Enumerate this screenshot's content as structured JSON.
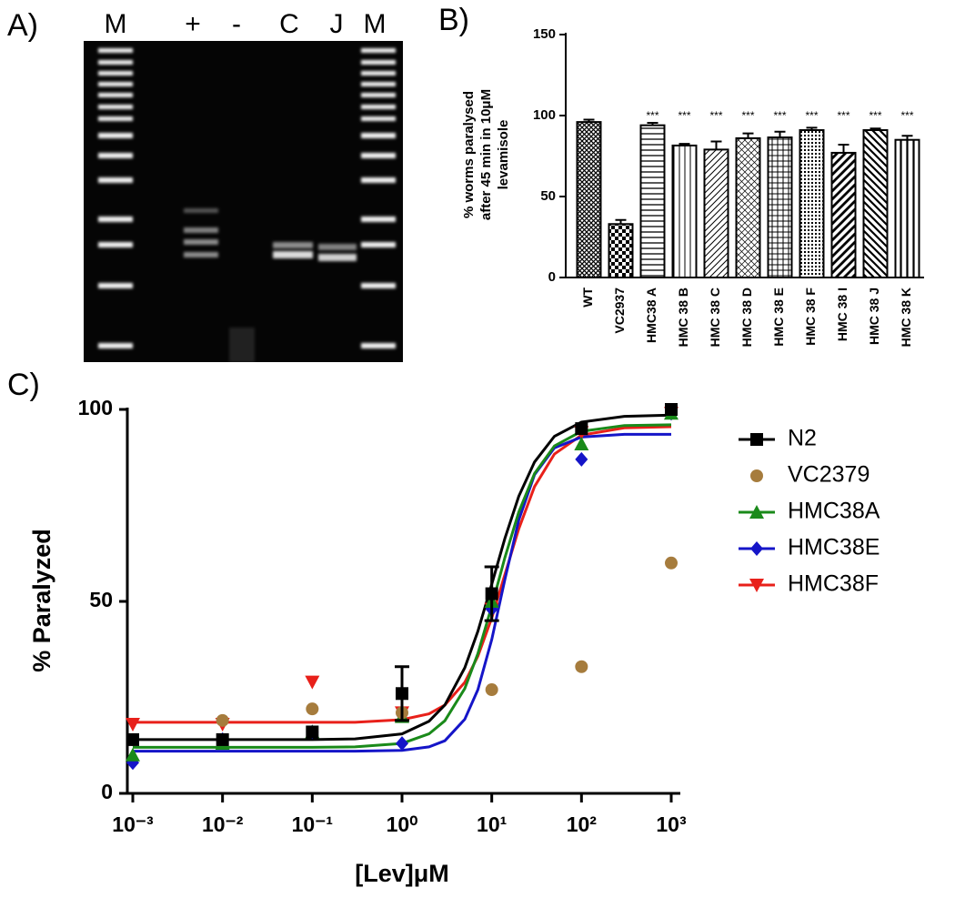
{
  "panel_a": {
    "label": "A)",
    "lanes": [
      "M",
      "+",
      "-",
      "C",
      "J",
      "M"
    ]
  },
  "chart_data": [
    {
      "type": "bar",
      "panel_label": "B)",
      "ylabel": [
        "% worms paralysed",
        "after 45 min in 10μM",
        "levamisole"
      ],
      "categories": [
        "WT",
        "VC2937",
        "HMC38 A",
        "HMC 38 B",
        "HMC 38 C",
        "HMC 38 D",
        "HMC 38 E",
        "HMC 38 F",
        "HMC 38 I",
        "HMC 38 J",
        "HMC 38 K"
      ],
      "values": [
        96,
        33,
        94,
        81.5,
        79,
        86,
        86.5,
        91,
        77,
        91,
        85
      ],
      "errors": [
        1.5,
        2.5,
        1.5,
        1,
        5,
        3,
        3.5,
        1.5,
        5,
        1,
        2.5
      ],
      "annotations": [
        null,
        null,
        "***",
        "***",
        "***",
        "***",
        "***",
        "***",
        "***",
        "***",
        "***"
      ],
      "patterns": [
        "crosshatch",
        "checker",
        "hlines",
        "vlines",
        "diag",
        "grid-diag",
        "grid",
        "dots",
        "thick-diag",
        "back-diag",
        "thick-vlines"
      ],
      "color": "#000000",
      "ylim": [
        0,
        150
      ],
      "yticks": [
        0,
        50,
        100,
        150
      ]
    },
    {
      "type": "line",
      "panel_label": "C)",
      "xlabel": "[Lev]μM",
      "ylabel": "% Paralyzed",
      "log_x": true,
      "legend": "right",
      "x": [
        0.001,
        0.01,
        0.1,
        1,
        10,
        100,
        1000
      ],
      "xlim": [
        0.001,
        1000
      ],
      "xticks": [
        {
          "value": 0.001,
          "label": "10⁻³"
        },
        {
          "value": 0.01,
          "label": "10⁻²"
        },
        {
          "value": 0.1,
          "label": "10⁻¹"
        },
        {
          "value": 1,
          "label": "10⁰"
        },
        {
          "value": 10,
          "label": "10¹"
        },
        {
          "value": 100,
          "label": "10²"
        },
        {
          "value": 1000,
          "label": "10³"
        }
      ],
      "ylim": [
        0,
        100
      ],
      "yticks": [
        0,
        50,
        100
      ],
      "curve_x": [
        0.001,
        0.01,
        0.1,
        0.3,
        1,
        2,
        3,
        5,
        7,
        10,
        14,
        20,
        30,
        50,
        100,
        300,
        1000
      ],
      "series": [
        {
          "name": "N2",
          "color": "#000000",
          "marker": "square",
          "values": [
            14,
            14,
            16,
            26,
            52,
            95,
            100
          ],
          "errors": [
            null,
            null,
            null,
            7,
            7,
            null,
            null
          ],
          "curve": [
            14,
            14,
            14,
            14.2,
            15.5,
            18.8,
            23,
            32.7,
            42.2,
            54.5,
            66.4,
            77.4,
            86.3,
            93,
            96.7,
            98.2,
            98.5
          ]
        },
        {
          "name": "VC2379",
          "color": "#a67c3d",
          "marker": "circle",
          "values": [
            14,
            19,
            22,
            21,
            27,
            33,
            60
          ]
        },
        {
          "name": "HMC38A",
          "color": "#1a8a1a",
          "marker": "triangle",
          "values": [
            10,
            13,
            16,
            20,
            50,
            91,
            99
          ],
          "curve": [
            12,
            12,
            12,
            12.1,
            13,
            15.5,
            18.9,
            27.3,
            36.4,
            48.8,
            61.4,
            73.3,
            83.3,
            90.5,
            94.3,
            95.8,
            96
          ]
        },
        {
          "name": "HMC38E",
          "color": "#1515c8",
          "marker": "diamond",
          "values": [
            8,
            14,
            16,
            13,
            48,
            87,
            99
          ],
          "curve": [
            11,
            11,
            11,
            11,
            11.2,
            12.1,
            13.7,
            19.3,
            27,
            40.1,
            55.7,
            71.2,
            83,
            90,
            92.8,
            93.5,
            93.5
          ]
        },
        {
          "name": "HMC38F",
          "color": "#e8201a",
          "marker": "triangle-down",
          "values": [
            18,
            18,
            29,
            21,
            48,
            94,
            99
          ],
          "curve": [
            18.5,
            18.5,
            18.5,
            18.5,
            19.2,
            20.7,
            23,
            28.9,
            35.7,
            45.7,
            57,
            68.9,
            79.9,
            88.4,
            93.3,
            95.2,
            95.5
          ]
        }
      ]
    }
  ]
}
